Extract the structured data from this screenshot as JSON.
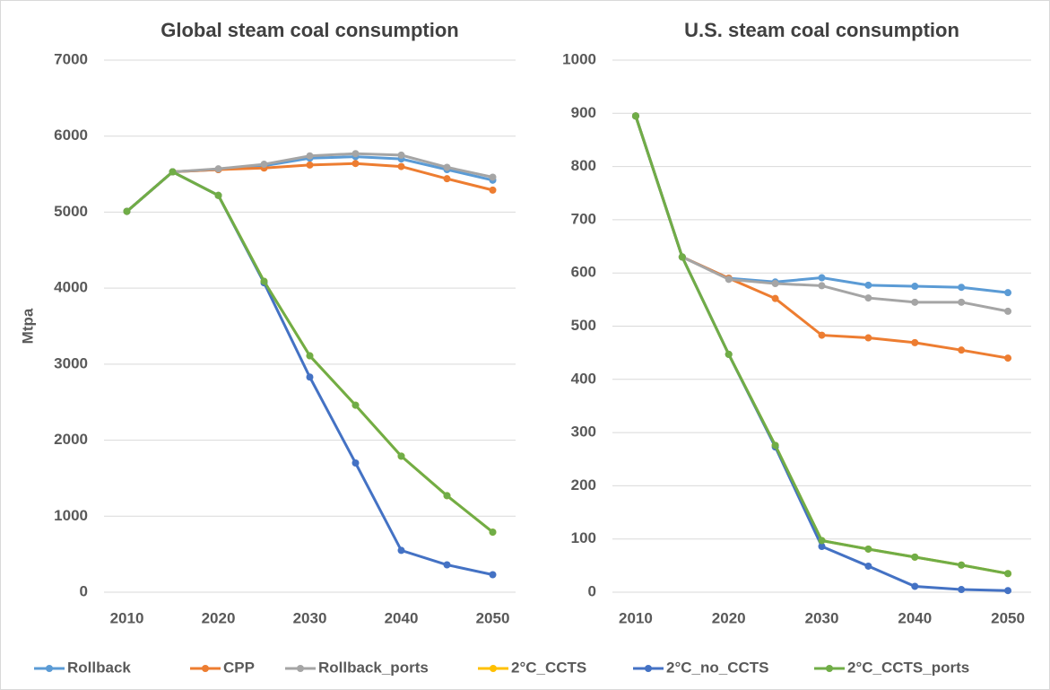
{
  "legend": [
    {
      "name": "Rollback",
      "color": "#5b9bd5"
    },
    {
      "name": "CPP",
      "color": "#ed7d31"
    },
    {
      "name": "Rollback_ports",
      "color": "#a5a5a5"
    },
    {
      "name": "2°C_CCTS",
      "color": "#ffc000"
    },
    {
      "name": "2°C_no_CCTS",
      "color": "#4472c4"
    },
    {
      "name": "2°C_CCTS_ports",
      "color": "#70ad47"
    }
  ],
  "chart_data": [
    {
      "type": "line",
      "title": "Global steam coal consumption",
      "y_label": "Mtpa",
      "x": [
        2010,
        2015,
        2020,
        2025,
        2030,
        2035,
        2040,
        2045,
        2050
      ],
      "xlim": [
        2007.5,
        2052.5
      ],
      "xticks": [
        2010,
        2020,
        2030,
        2040,
        2050
      ],
      "ylim": [
        0,
        7000
      ],
      "yticks": [
        0,
        1000,
        2000,
        3000,
        4000,
        5000,
        6000,
        7000
      ],
      "grid": true,
      "series": [
        {
          "legend": 0,
          "values": [
            5010,
            5530,
            5560,
            5610,
            5710,
            5730,
            5700,
            5560,
            5420
          ]
        },
        {
          "legend": 1,
          "values": [
            5010,
            5530,
            5560,
            5580,
            5620,
            5640,
            5600,
            5440,
            5290
          ]
        },
        {
          "legend": 2,
          "values": [
            5010,
            5530,
            5570,
            5630,
            5740,
            5770,
            5750,
            5590,
            5460
          ]
        },
        {
          "legend": 3,
          "values": [
            5010,
            5530,
            5220,
            4090,
            3110,
            2460,
            1790,
            1270,
            790
          ]
        },
        {
          "legend": 4,
          "values": [
            5010,
            5530,
            5220,
            4070,
            2830,
            1700,
            550,
            360,
            230
          ]
        },
        {
          "legend": 5,
          "values": [
            5010,
            5530,
            5220,
            4090,
            3110,
            2460,
            1790,
            1270,
            790
          ]
        }
      ]
    },
    {
      "type": "line",
      "title": "U.S. steam coal consumption",
      "x": [
        2010,
        2015,
        2020,
        2025,
        2030,
        2035,
        2040,
        2045,
        2050
      ],
      "xlim": [
        2007.5,
        2052.5
      ],
      "xticks": [
        2010,
        2020,
        2030,
        2040,
        2050
      ],
      "ylim": [
        0,
        1000
      ],
      "yticks": [
        0,
        100,
        200,
        300,
        400,
        500,
        600,
        700,
        800,
        900,
        1000
      ],
      "grid": true,
      "series": [
        {
          "legend": 0,
          "values": [
            895,
            630,
            590,
            583,
            591,
            577,
            575,
            573,
            563
          ]
        },
        {
          "legend": 1,
          "values": [
            895,
            630,
            590,
            552,
            483,
            478,
            469,
            455,
            440
          ]
        },
        {
          "legend": 2,
          "values": [
            895,
            630,
            588,
            580,
            576,
            553,
            545,
            545,
            528
          ]
        },
        {
          "legend": 3,
          "values": [
            895,
            630,
            447,
            276,
            97,
            81,
            66,
            51,
            35
          ]
        },
        {
          "legend": 4,
          "values": [
            895,
            630,
            447,
            273,
            86,
            49,
            11,
            5,
            3
          ]
        },
        {
          "legend": 5,
          "values": [
            895,
            630,
            447,
            276,
            97,
            81,
            66,
            51,
            35
          ]
        }
      ]
    }
  ]
}
